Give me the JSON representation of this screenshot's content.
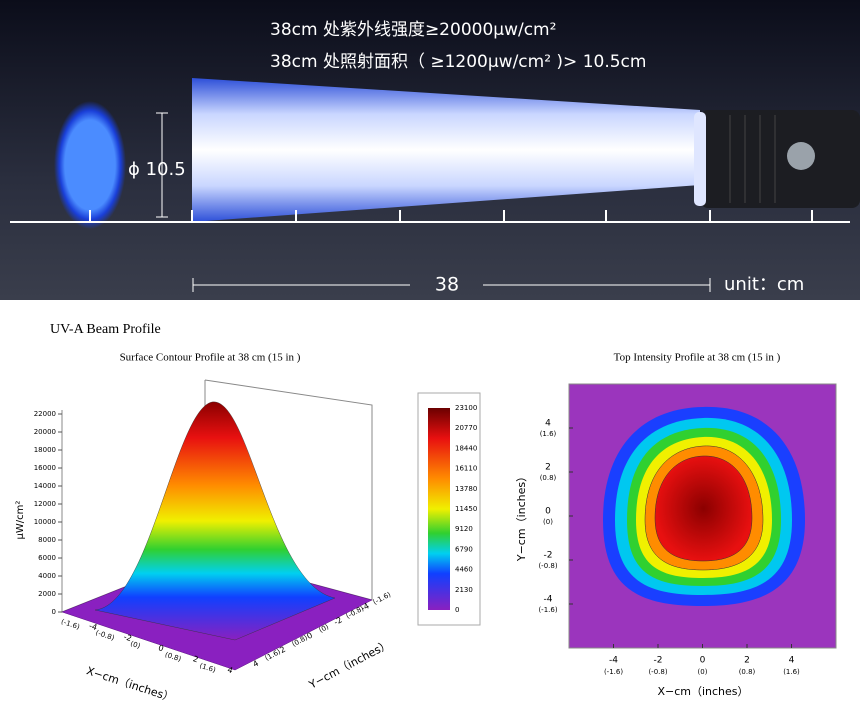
{
  "banner": {
    "line1": "38cm 处紫外线强度≥20000μw/cm²",
    "line2": "38cm 处照射面积（ ≥1200μw/cm² )> 10.5cm",
    "diameter_label": "ϕ 10.5",
    "distance_label": "38",
    "unit_label": "unit：cm"
  },
  "section_title": "UV-A Beam Profile",
  "surface_plot": {
    "title": "Surface Contour Profile at 38 cm (15 in )",
    "z_label": "μW/cm²",
    "zlim": [
      0,
      22000
    ],
    "zticks": [
      0,
      2000,
      4000,
      6000,
      8000,
      10000,
      12000,
      14000,
      16000,
      18000,
      20000,
      22000
    ],
    "x_label": "X−cm（inches）",
    "y_label": "Y−cm（inches）",
    "xy_ticks": [
      -4,
      -2,
      0,
      2,
      4
    ],
    "inch_labels": [
      "(-1.6)",
      "(-0.8)",
      "(0)",
      "(0.8)",
      "(1.6)"
    ]
  },
  "colorbar": {
    "values": [
      23100,
      20770,
      18440,
      16110,
      13780,
      11450,
      9120,
      6790,
      4460,
      2130,
      0
    ]
  },
  "intensity_map": {
    "title": "Top Intensity Profile at 38 cm (15 in )",
    "x_label": "X−cm（inches）",
    "y_label": "Y−cm（inches）",
    "xlim": [
      -6,
      6
    ],
    "ylim": [
      -6,
      6
    ],
    "ticks": [
      -4,
      -2,
      0,
      2,
      4
    ],
    "inch_labels": [
      "(-1.6)",
      "(-0.8)",
      "(0)",
      "(0.8)",
      "(1.6)"
    ]
  }
}
